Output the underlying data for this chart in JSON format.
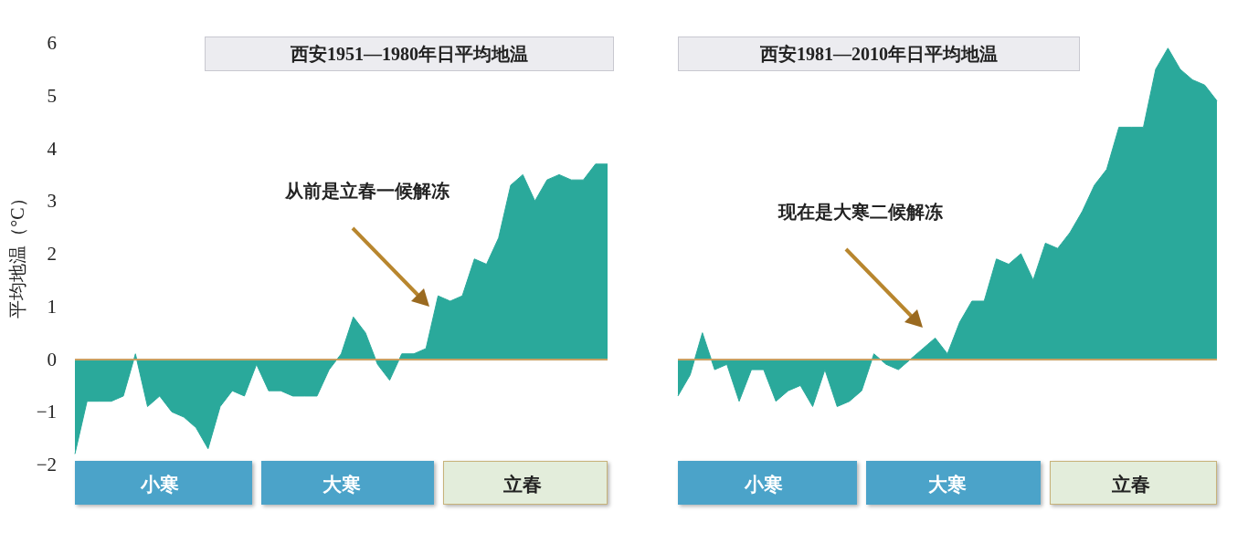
{
  "chart_data": [
    {
      "type": "area",
      "title": "西安1951—1980年日平均地温",
      "ylabel": "平均地温（°C）",
      "ylim": [
        -2,
        6
      ],
      "yticks": [
        {
          "value": -2,
          "label": "−2"
        },
        {
          "value": -1,
          "label": "−1"
        },
        0,
        1,
        2,
        3,
        4,
        5,
        6
      ],
      "categories": [
        null,
        null,
        null,
        null,
        null,
        null,
        null,
        "小寒",
        null,
        null,
        null,
        null,
        null,
        null,
        null,
        null,
        null,
        null,
        null,
        null,
        null,
        null,
        "大寒",
        null,
        null,
        null,
        null,
        null,
        null,
        null,
        null,
        null,
        null,
        null,
        null,
        null,
        null,
        "立春",
        null,
        null,
        null,
        null,
        null,
        null,
        null
      ],
      "series": [
        {
          "color": "#2aa99b",
          "values": [
            -1.8,
            -0.8,
            -0.8,
            -0.8,
            -0.7,
            0.1,
            -0.9,
            -0.7,
            -1.0,
            -1.1,
            -1.3,
            -1.7,
            -0.9,
            -0.6,
            -0.7,
            -0.1,
            -0.6,
            -0.6,
            -0.7,
            -0.7,
            -0.7,
            -0.2,
            0.1,
            0.8,
            0.5,
            -0.1,
            -0.4,
            0.1,
            0.1,
            0.2,
            1.2,
            1.1,
            1.2,
            1.9,
            1.8,
            2.3,
            3.3,
            3.5,
            3.0,
            3.4,
            3.5,
            3.4,
            3.4,
            3.7,
            3.7
          ]
        }
      ],
      "ref_lines": [
        {
          "axis": "y",
          "value": 0,
          "color": "#c9a063"
        }
      ],
      "annotations": [
        "从前是立春一候解冻"
      ]
    },
    {
      "type": "area",
      "title": "西安1981—2010年日平均地温",
      "ylim": [
        -2,
        6
      ],
      "tick_labels": "x",
      "categories": [
        null,
        null,
        null,
        null,
        null,
        null,
        null,
        "小寒",
        null,
        null,
        null,
        null,
        null,
        null,
        null,
        null,
        null,
        null,
        null,
        null,
        null,
        null,
        "大寒",
        null,
        null,
        null,
        null,
        null,
        null,
        null,
        null,
        null,
        null,
        null,
        null,
        null,
        null,
        "立春",
        null,
        null,
        null,
        null,
        null,
        null,
        null
      ],
      "series": [
        {
          "color": "#2aa99b",
          "values": [
            -0.7,
            -0.3,
            0.5,
            -0.2,
            -0.1,
            -0.8,
            -0.2,
            -0.2,
            -0.8,
            -0.6,
            -0.5,
            -0.9,
            -0.2,
            -0.9,
            -0.8,
            -0.6,
            0.1,
            -0.1,
            -0.2,
            0.0,
            0.2,
            0.4,
            0.1,
            0.7,
            1.1,
            1.1,
            1.9,
            1.8,
            2.0,
            1.5,
            2.2,
            2.1,
            2.4,
            2.8,
            3.3,
            3.6,
            4.4,
            4.4,
            4.4,
            5.5,
            5.9,
            5.5,
            5.3,
            5.2,
            4.9
          ]
        }
      ],
      "ref_lines": [
        {
          "axis": "y",
          "value": 0,
          "color": "#c9a063"
        }
      ],
      "annotations": [
        "现在是大寒二候解冻"
      ]
    }
  ]
}
